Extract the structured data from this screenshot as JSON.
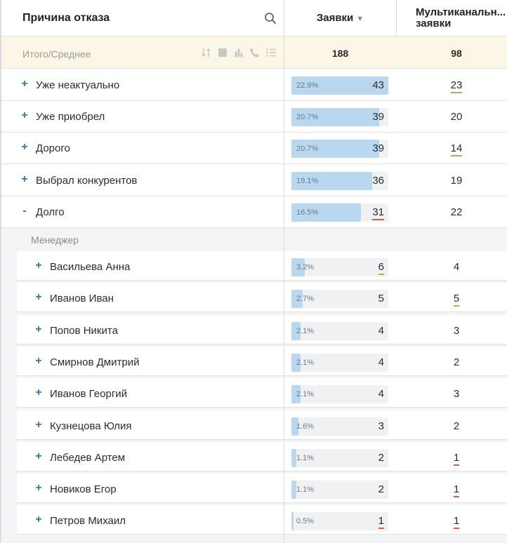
{
  "header": {
    "title": "Причина отказа",
    "col1": "Заявки",
    "col1_sort": "▼",
    "col2_line1": "Мультиканальн...",
    "col2_line2": "заявки"
  },
  "total": {
    "label": "Итого/Среднее",
    "col1": "188",
    "col2": "98"
  },
  "rows": [
    {
      "expander": "+",
      "label": "Уже неактуально",
      "pct": "22.9%",
      "pct_value": 22.9,
      "value": "43",
      "value_ul": "",
      "multi": "23",
      "multi_ul": "green"
    },
    {
      "expander": "+",
      "label": "Уже приобрел",
      "pct": "20.7%",
      "pct_value": 20.7,
      "value": "39",
      "value_ul": "",
      "multi": "20",
      "multi_ul": ""
    },
    {
      "expander": "+",
      "label": "Дорого",
      "pct": "20.7%",
      "pct_value": 20.7,
      "value": "39",
      "value_ul": "",
      "multi": "14",
      "multi_ul": "green"
    },
    {
      "expander": "+",
      "label": "Выбрал конкурентов",
      "pct": "19.1%",
      "pct_value": 19.1,
      "value": "36",
      "value_ul": "",
      "multi": "19",
      "multi_ul": ""
    },
    {
      "expander": "-",
      "label": "Долго",
      "pct": "16.5%",
      "pct_value": 16.5,
      "value": "31",
      "value_ul": "red",
      "multi": "22",
      "multi_ul": ""
    }
  ],
  "group_label": "Менеджер",
  "sub_rows": [
    {
      "expander": "+",
      "label": "Васильева Анна",
      "pct": "3.2%",
      "pct_value": 3.2,
      "value": "6",
      "value_ul": "green",
      "multi": "4",
      "multi_ul": ""
    },
    {
      "expander": "+",
      "label": "Иванов Иван",
      "pct": "2.7%",
      "pct_value": 2.7,
      "value": "5",
      "value_ul": "",
      "multi": "5",
      "multi_ul": "green"
    },
    {
      "expander": "+",
      "label": "Попов Никита",
      "pct": "2.1%",
      "pct_value": 2.1,
      "value": "4",
      "value_ul": "",
      "multi": "3",
      "multi_ul": ""
    },
    {
      "expander": "+",
      "label": "Смирнов Дмитрий",
      "pct": "2.1%",
      "pct_value": 2.1,
      "value": "4",
      "value_ul": "",
      "multi": "2",
      "multi_ul": ""
    },
    {
      "expander": "+",
      "label": "Иванов Георгий",
      "pct": "2.1%",
      "pct_value": 2.1,
      "value": "4",
      "value_ul": "",
      "multi": "3",
      "multi_ul": ""
    },
    {
      "expander": "+",
      "label": "Кузнецова Юлия",
      "pct": "1.6%",
      "pct_value": 1.6,
      "value": "3",
      "value_ul": "",
      "multi": "2",
      "multi_ul": ""
    },
    {
      "expander": "+",
      "label": "Лебедев Артем",
      "pct": "1.1%",
      "pct_value": 1.1,
      "value": "2",
      "value_ul": "",
      "multi": "1",
      "multi_ul": "red"
    },
    {
      "expander": "+",
      "label": "Новиков Егор",
      "pct": "1.1%",
      "pct_value": 1.1,
      "value": "2",
      "value_ul": "",
      "multi": "1",
      "multi_ul": "red"
    },
    {
      "expander": "+",
      "label": "Петров Михаил",
      "pct": "0.5%",
      "pct_value": 0.5,
      "value": "1",
      "value_ul": "red",
      "multi": "1",
      "multi_ul": "red"
    }
  ],
  "icons": [
    "search-icon",
    "sort-icon",
    "square-icon",
    "chart-icon",
    "phone-icon",
    "list-icon"
  ]
}
